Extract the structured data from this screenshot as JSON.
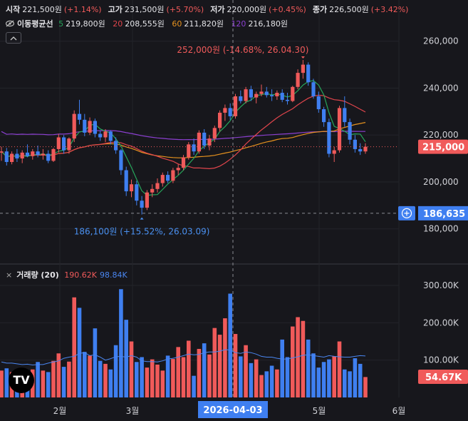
{
  "header": {
    "open_label": "시작",
    "open_value": "221,500원",
    "open_change": "(+1.14%)",
    "high_label": "고가",
    "high_value": "231,500원",
    "high_change": "(+5.70%)",
    "low_label": "저가",
    "low_value": "220,000원",
    "low_change": "(+0.45%)",
    "close_label": "종가",
    "close_value": "226,500원",
    "close_change": "(+3.42%)"
  },
  "moving_average": {
    "title": "이동평균선",
    "items": [
      {
        "period": "5",
        "value": "219,800원",
        "color": "#26a65b"
      },
      {
        "period": "20",
        "value": "208,555원",
        "color": "#e0454c"
      },
      {
        "period": "60",
        "value": "211,820원",
        "color": "#e6921e"
      },
      {
        "period": "120",
        "value": "216,180원",
        "color": "#8b3fcf"
      }
    ]
  },
  "volume_header": {
    "close_glyph": "×",
    "title": "거래량 (20)",
    "value1": "190.62K",
    "value1_color": "#f05a5a",
    "value2": "98.84K",
    "value2_color": "#4a86f0"
  },
  "colors": {
    "up": "#f05a5a",
    "down": "#3f7ff0",
    "background": "#17171c",
    "price_badge": "#f05a5a",
    "crosshair_badge": "#3f7ff0"
  },
  "logo_text": "TV",
  "chart_data": [
    {
      "type": "candlestick",
      "y_axis": {
        "ticks": [
          180000,
          200000,
          220000,
          240000,
          260000
        ],
        "tick_labels": [
          "180,000",
          "200,000",
          "220,000",
          "240,000",
          "260,000"
        ],
        "range": [
          165000,
          266000
        ]
      },
      "x_axis": {
        "labels": [
          "2월",
          "3월",
          "5월",
          "6월"
        ],
        "highlight_label": "2026-04-03"
      },
      "current_price": {
        "value": 215000,
        "label": "215,000"
      },
      "crosshair_price": {
        "value": 186635,
        "label": "186,635"
      },
      "annotations": {
        "high": {
          "value": 252000,
          "text": "252,000원 (-14.68%, 26.04.30)"
        },
        "low": {
          "value": 186100,
          "text": "186,100원 (+15.52%, 26.03.09)"
        }
      },
      "candles": [
        [
          212500,
          215000,
          209000,
          213000
        ],
        [
          213000,
          214500,
          207000,
          208500
        ],
        [
          208500,
          213000,
          207500,
          212000
        ],
        [
          212000,
          214000,
          208500,
          210000
        ],
        [
          210000,
          213500,
          208000,
          212500
        ],
        [
          212500,
          216000,
          210500,
          211000
        ],
        [
          211000,
          214000,
          209500,
          213000
        ],
        [
          213000,
          215500,
          210500,
          211500
        ],
        [
          211500,
          214000,
          209500,
          212000
        ],
        [
          212000,
          213500,
          208000,
          209000
        ],
        [
          209000,
          214500,
          208500,
          214000
        ],
        [
          214000,
          220500,
          212500,
          219000
        ],
        [
          219000,
          220000,
          212000,
          213500
        ],
        [
          213500,
          219000,
          212000,
          218500
        ],
        [
          218500,
          230500,
          217000,
          229000
        ],
        [
          229000,
          235000,
          224500,
          226500
        ],
        [
          226500,
          229000,
          219500,
          221000
        ],
        [
          221000,
          227500,
          220000,
          226000
        ],
        [
          226000,
          227000,
          219000,
          220500
        ],
        [
          220500,
          222000,
          217500,
          219000
        ],
        [
          219000,
          222500,
          217000,
          221500
        ],
        [
          221500,
          222000,
          216000,
          217500
        ],
        [
          217500,
          219000,
          212000,
          213500
        ],
        [
          213500,
          214000,
          203000,
          205000
        ],
        [
          205000,
          206500,
          194000,
          196000
        ],
        [
          196000,
          201000,
          193500,
          199000
        ],
        [
          199000,
          200500,
          190000,
          192000
        ],
        [
          192000,
          194000,
          186100,
          189000
        ],
        [
          189000,
          196500,
          188000,
          195500
        ],
        [
          195500,
          199000,
          193500,
          197000
        ],
        [
          197000,
          201500,
          195500,
          199500
        ],
        [
          199500,
          204000,
          198000,
          203000
        ],
        [
          203000,
          204500,
          199500,
          200500
        ],
        [
          200500,
          206000,
          199500,
          205000
        ],
        [
          205000,
          207500,
          203000,
          206000
        ],
        [
          206000,
          211500,
          205000,
          210500
        ],
        [
          210500,
          217000,
          209500,
          216000
        ],
        [
          216000,
          218500,
          211500,
          213000
        ],
        [
          213000,
          222000,
          212000,
          221000
        ],
        [
          221000,
          222500,
          214000,
          215500
        ],
        [
          215500,
          220000,
          213500,
          218500
        ],
        [
          218500,
          224000,
          217000,
          223000
        ],
        [
          223000,
          230500,
          221500,
          229500
        ],
        [
          229500,
          233000,
          226000,
          231500
        ],
        [
          231500,
          233500,
          226500,
          228000
        ],
        [
          228000,
          237500,
          227000,
          236500
        ],
        [
          236500,
          239000,
          233500,
          234500
        ],
        [
          234500,
          240500,
          233500,
          239500
        ],
        [
          239500,
          241000,
          234500,
          236000
        ],
        [
          236000,
          238500,
          233500,
          237500
        ],
        [
          237500,
          241500,
          236500,
          238500
        ],
        [
          238500,
          240500,
          236000,
          237000
        ],
        [
          237000,
          239500,
          234500,
          236500
        ],
        [
          236500,
          239000,
          235000,
          238000
        ],
        [
          238000,
          239500,
          234000,
          235000
        ],
        [
          235000,
          238000,
          233000,
          234500
        ],
        [
          234500,
          241000,
          234000,
          240500
        ],
        [
          240500,
          248000,
          239500,
          246500
        ],
        [
          246500,
          252000,
          244000,
          250000
        ],
        [
          250000,
          251000,
          241000,
          242500
        ],
        [
          242500,
          244000,
          235500,
          236500
        ],
        [
          236500,
          238500,
          229500,
          231000
        ],
        [
          231000,
          232000,
          223500,
          225500
        ],
        [
          225500,
          227000,
          210500,
          212000
        ],
        [
          212000,
          215000,
          208500,
          213500
        ],
        [
          213500,
          232500,
          212500,
          231500
        ],
        [
          231500,
          236500,
          223500,
          225500
        ],
        [
          225500,
          227000,
          216000,
          218000
        ],
        [
          218000,
          220000,
          212500,
          214000
        ],
        [
          214000,
          216500,
          211500,
          213000
        ],
        [
          213000,
          216500,
          212000,
          215000
        ]
      ],
      "volume": {
        "y_axis": {
          "ticks": [
            100000,
            200000,
            300000
          ],
          "tick_labels": [
            "100.00K",
            "200.00K",
            "300.00K"
          ]
        },
        "current": {
          "value": 54670,
          "label": "54.67K"
        },
        "values": [
          72,
          78,
          68,
          65,
          64,
          70,
          75,
          95,
          72,
          68,
          98,
          118,
          82,
          96,
          268,
          240,
          122,
          112,
          185,
          98,
          90,
          75,
          140,
          290,
          208,
          150,
          95,
          108,
          80,
          102,
          88,
          72,
          112,
          103,
          135,
          108,
          152,
          58,
          130,
          145,
          115,
          186,
          168,
          212,
          278,
          170,
          110,
          140,
          92,
          102,
          60,
          70,
          85,
          75,
          155,
          108,
          190,
          215,
          205,
          155,
          118,
          80,
          95,
          102,
          110,
          150,
          75,
          70,
          105,
          90,
          54.67
        ],
        "ma": [
          95,
          92,
          92,
          90,
          88,
          89,
          87,
          88,
          88,
          92,
          95,
          98,
          105,
          108,
          110,
          118,
          120,
          112,
          114,
          108,
          100,
          104,
          109,
          110,
          108,
          112,
          108,
          98,
          96,
          96,
          95,
          98,
          103,
          105,
          108,
          112,
          116,
          114,
          115,
          120,
          122,
          122,
          124,
          128,
          127,
          120,
          118,
          122,
          120,
          116,
          110,
          108,
          108,
          105,
          103,
          103,
          106,
          109,
          113,
          114,
          112,
          110,
          108,
          112,
          110,
          109,
          108,
          108,
          110,
          112,
          111
        ]
      }
    }
  ]
}
